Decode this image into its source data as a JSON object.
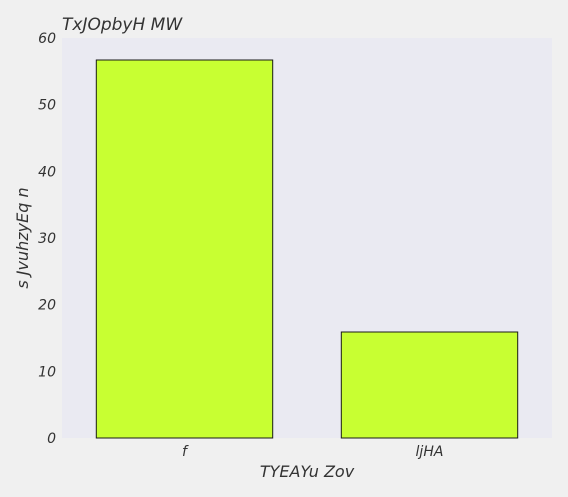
{
  "chart_data": {
    "type": "bar",
    "title": "TxJOpbyH MW",
    "xlabel": "TYEAYu Zov",
    "ylabel": "s  JvuhzyEq n",
    "categories": [
      "f",
      "ljHA"
    ],
    "values": [
      56.7,
      15.9
    ],
    "ylim": [
      0,
      60
    ],
    "yticks": [
      0,
      10,
      20,
      30,
      40,
      50,
      60
    ],
    "grid": false,
    "colors": {
      "bar": "#c8ff32",
      "bar_edge": "#1a1a1a",
      "plot_bg": "#eaeaf2",
      "text": "#333333"
    }
  }
}
